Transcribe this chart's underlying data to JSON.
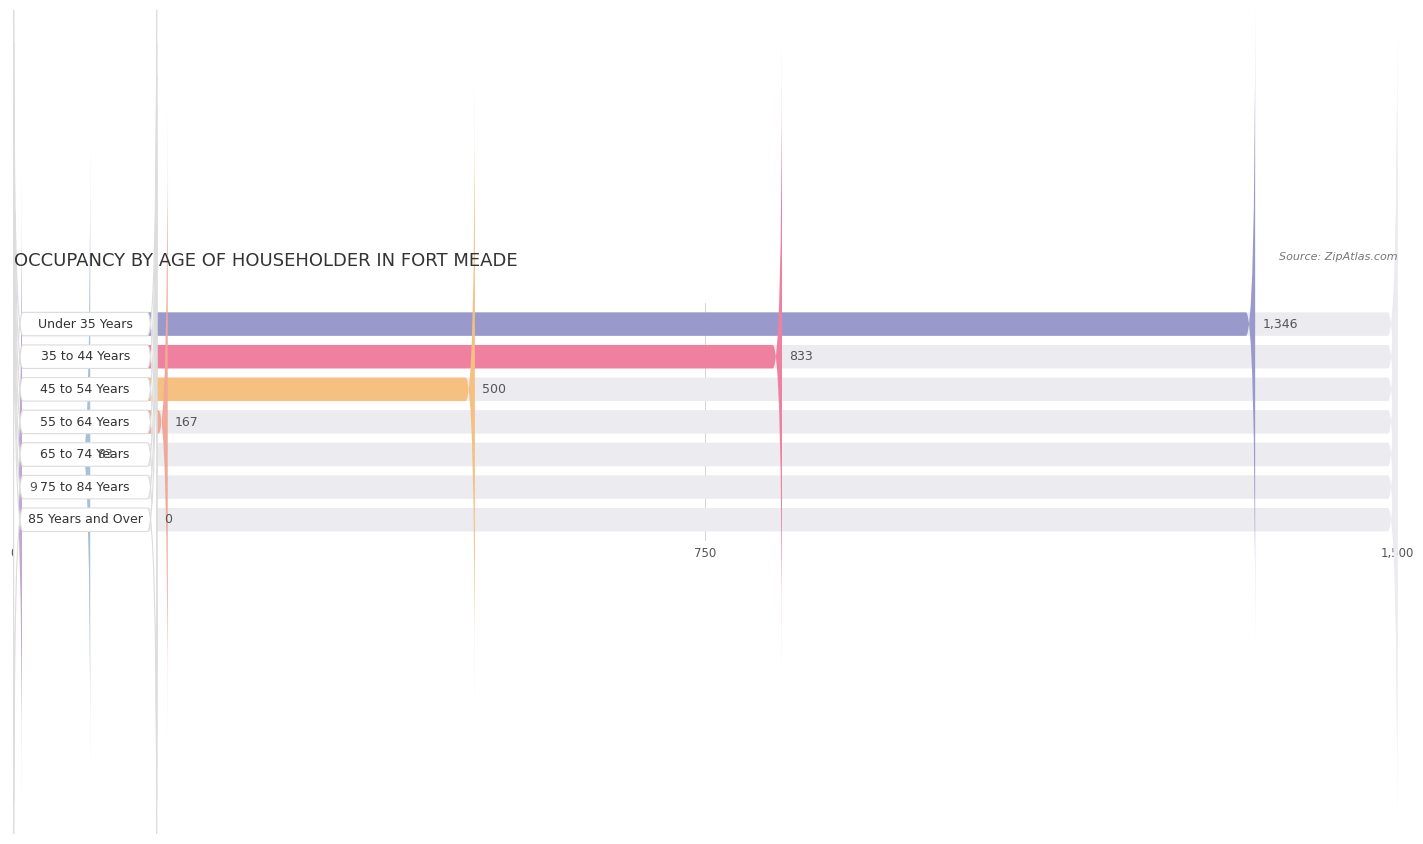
{
  "title": "OCCUPANCY BY AGE OF HOUSEHOLDER IN FORT MEADE",
  "source": "Source: ZipAtlas.com",
  "categories": [
    "Under 35 Years",
    "35 to 44 Years",
    "45 to 54 Years",
    "55 to 64 Years",
    "65 to 74 Years",
    "75 to 84 Years",
    "85 Years and Over"
  ],
  "values": [
    1346,
    833,
    500,
    167,
    83,
    9,
    0
  ],
  "bar_colors": [
    "#9999cc",
    "#f080a0",
    "#f5c080",
    "#f0a898",
    "#a8c0d8",
    "#c0a8d0",
    "#80c8c0"
  ],
  "xlim": [
    0,
    1500
  ],
  "xticks": [
    0,
    750,
    1500
  ],
  "background_color": "#ffffff",
  "bar_bg_color": "#ebebf0",
  "row_bg_color": "#f5f5f8",
  "title_fontsize": 13,
  "label_fontsize": 9,
  "value_fontsize": 9,
  "source_fontsize": 8
}
